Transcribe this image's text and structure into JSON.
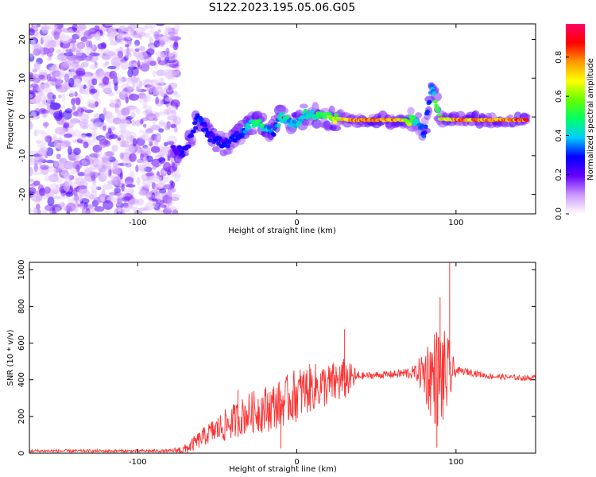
{
  "figure_title": "S122.2023.195.05.06.G05",
  "chart_data": [
    {
      "type": "heatmap",
      "xlabel": "Height of straight line (km)",
      "ylabel": "Frequency (Hz)",
      "xlim": [
        -168,
        150
      ],
      "ylim": [
        -25,
        24
      ],
      "xticks": [
        -100,
        0,
        100
      ],
      "yticks": [
        -20,
        -10,
        0,
        10,
        20
      ],
      "colorbar": {
        "label": "Normalized spectral amplitude",
        "range": [
          0,
          0.97
        ],
        "ticks": [
          "0.0",
          "0.2",
          "0.4",
          "0.6",
          "0.8"
        ],
        "colors": [
          "#ffffff",
          "#cc99ff",
          "#6600ff",
          "#0000ff",
          "#00ccff",
          "#00ff66",
          "#66ff00",
          "#ffff00",
          "#ff9900",
          "#ff0000",
          "#ff0066"
        ]
      },
      "ridge": [
        {
          "x": -78,
          "y": -8,
          "a": 0.25
        },
        {
          "x": -70,
          "y": -9,
          "a": 0.3
        },
        {
          "x": -62,
          "y": 0,
          "a": 0.35
        },
        {
          "x": -55,
          "y": -5,
          "a": 0.3
        },
        {
          "x": -45,
          "y": -7,
          "a": 0.3
        },
        {
          "x": -35,
          "y": -4,
          "a": 0.35
        },
        {
          "x": -25,
          "y": -1,
          "a": 0.6
        },
        {
          "x": -15,
          "y": -4,
          "a": 0.35
        },
        {
          "x": -10,
          "y": 0,
          "a": 0.5
        },
        {
          "x": 0,
          "y": -2,
          "a": 0.45
        },
        {
          "x": 5,
          "y": 1,
          "a": 0.5
        },
        {
          "x": 15,
          "y": 0,
          "a": 0.55
        },
        {
          "x": 25,
          "y": -0.5,
          "a": 0.7
        },
        {
          "x": 35,
          "y": -0.8,
          "a": 0.9
        },
        {
          "x": 50,
          "y": -0.8,
          "a": 0.9
        },
        {
          "x": 65,
          "y": -0.8,
          "a": 0.85
        },
        {
          "x": 75,
          "y": -1,
          "a": 0.5
        },
        {
          "x": 80,
          "y": -4,
          "a": 0.35
        },
        {
          "x": 85,
          "y": 8,
          "a": 0.4
        },
        {
          "x": 90,
          "y": -0.5,
          "a": 0.75
        },
        {
          "x": 105,
          "y": -0.8,
          "a": 0.9
        },
        {
          "x": 120,
          "y": -0.8,
          "a": 0.85
        },
        {
          "x": 135,
          "y": -0.8,
          "a": 0.9
        },
        {
          "x": 145,
          "y": -0.8,
          "a": 0.95
        }
      ]
    },
    {
      "type": "line",
      "xlabel": "Height of straight line (km)",
      "ylabel": "SNR (10 * v/v)",
      "xlim": [
        -168,
        150
      ],
      "ylim": [
        0,
        1040
      ],
      "xticks": [
        -100,
        0,
        100
      ],
      "yticks": [
        0,
        200,
        400,
        600,
        800,
        1000
      ],
      "color": "#ff3333",
      "envelope": {
        "x": [
          -168,
          -80,
          -70,
          -55,
          -45,
          -30,
          -20,
          -10,
          0,
          10,
          20,
          30,
          40,
          60,
          75,
          80,
          85,
          90,
          95,
          100,
          110,
          120,
          130,
          140,
          150
        ],
        "mean": [
          12,
          12,
          20,
          110,
          150,
          220,
          240,
          270,
          320,
          360,
          370,
          400,
          420,
          430,
          440,
          440,
          420,
          410,
          420,
          450,
          440,
          420,
          415,
          410,
          410
        ],
        "amp": [
          8,
          8,
          30,
          60,
          90,
          110,
          130,
          130,
          150,
          130,
          120,
          120,
          20,
          20,
          40,
          150,
          250,
          300,
          220,
          20,
          20,
          15,
          15,
          15,
          15
        ]
      },
      "spikes": [
        {
          "x": -37,
          "y": 345
        },
        {
          "x": 30,
          "y": 675
        },
        {
          "x": 90,
          "y": 850
        },
        {
          "x": 96,
          "y": 1040
        },
        {
          "x": -10,
          "y": 25
        },
        {
          "x": 88,
          "y": 30
        }
      ]
    }
  ]
}
